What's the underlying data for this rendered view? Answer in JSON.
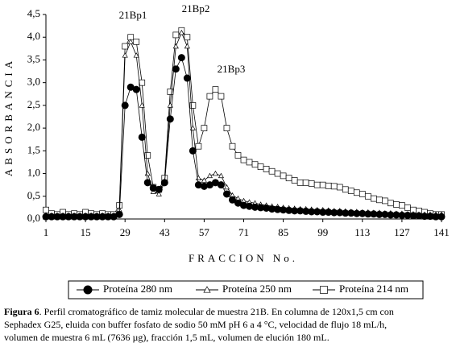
{
  "chart_data": {
    "type": "line",
    "annotations": [
      "21Bp1",
      "21Bp2",
      "21Bp3"
    ],
    "y_label": "ABSORBANCIA",
    "x_label": "FRACCION No.",
    "x": [
      1,
      3,
      5,
      7,
      9,
      11,
      13,
      15,
      17,
      19,
      21,
      23,
      25,
      27,
      29,
      31,
      33,
      35,
      37,
      39,
      41,
      43,
      45,
      47,
      49,
      51,
      53,
      55,
      57,
      59,
      61,
      63,
      65,
      67,
      69,
      71,
      73,
      75,
      77,
      79,
      81,
      83,
      85,
      87,
      89,
      91,
      93,
      95,
      97,
      99,
      101,
      103,
      105,
      107,
      109,
      111,
      113,
      115,
      117,
      119,
      121,
      123,
      125,
      127,
      129,
      131,
      133,
      135,
      137,
      139,
      141
    ],
    "xlim": [
      1,
      141
    ],
    "xticks": [
      1,
      15,
      29,
      43,
      57,
      71,
      85,
      99,
      113,
      127,
      141
    ],
    "ylim": [
      0,
      4.5
    ],
    "yticks": [
      {
        "value": 0,
        "label": "0,0"
      },
      {
        "value": 0.5,
        "label": "0,5"
      },
      {
        "value": 1,
        "label": "1,0"
      },
      {
        "value": 1.5,
        "label": "1,5"
      },
      {
        "value": 2,
        "label": "2,0"
      },
      {
        "value": 2.5,
        "label": "2,5"
      },
      {
        "value": 3,
        "label": "3,0"
      },
      {
        "value": 3.5,
        "label": "3,5"
      },
      {
        "value": 4,
        "label": "4,0"
      },
      {
        "value": 4.5,
        "label": "4,5"
      }
    ],
    "series": [
      {
        "name": "Proteína 280 nm",
        "color": "#000000",
        "marker": "circle",
        "values": [
          0.05,
          0.05,
          0.05,
          0.05,
          0.05,
          0.05,
          0.05,
          0.05,
          0.05,
          0.05,
          0.05,
          0.05,
          0.05,
          0.1,
          2.5,
          2.9,
          2.85,
          1.8,
          0.8,
          0.68,
          0.65,
          0.8,
          2.2,
          3.3,
          3.55,
          3.1,
          1.5,
          0.75,
          0.72,
          0.75,
          0.8,
          0.75,
          0.55,
          0.42,
          0.35,
          0.3,
          0.28,
          0.26,
          0.25,
          0.24,
          0.22,
          0.21,
          0.2,
          0.19,
          0.18,
          0.18,
          0.17,
          0.16,
          0.16,
          0.15,
          0.15,
          0.14,
          0.14,
          0.13,
          0.13,
          0.12,
          0.12,
          0.11,
          0.11,
          0.1,
          0.1,
          0.09,
          0.09,
          0.08,
          0.08,
          0.07,
          0.07,
          0.06,
          0.06,
          0.05,
          0.05
        ]
      },
      {
        "name": "Proteína 250 nm",
        "color": "#000000",
        "marker": "triangle",
        "values": [
          0.08,
          0.08,
          0.08,
          0.08,
          0.08,
          0.08,
          0.08,
          0.08,
          0.08,
          0.08,
          0.08,
          0.08,
          0.08,
          0.2,
          3.6,
          3.9,
          3.6,
          2.5,
          1.0,
          0.6,
          0.55,
          0.8,
          2.5,
          3.8,
          4.1,
          3.8,
          2.0,
          0.9,
          0.85,
          0.95,
          1.0,
          0.95,
          0.7,
          0.52,
          0.45,
          0.4,
          0.37,
          0.35,
          0.32,
          0.3,
          0.28,
          0.27,
          0.25,
          0.24,
          0.23,
          0.22,
          0.22,
          0.21,
          0.2,
          0.2,
          0.19,
          0.18,
          0.18,
          0.17,
          0.16,
          0.16,
          0.15,
          0.15,
          0.14,
          0.14,
          0.13,
          0.13,
          0.12,
          0.12,
          0.11,
          0.11,
          0.1,
          0.1,
          0.1,
          0.1,
          0.1
        ]
      },
      {
        "name": "Proteína 214 nm",
        "color": "#000000",
        "marker": "square",
        "values": [
          0.2,
          0.12,
          0.1,
          0.15,
          0.1,
          0.12,
          0.1,
          0.15,
          0.12,
          0.1,
          0.12,
          0.1,
          0.1,
          0.3,
          3.8,
          4.0,
          3.9,
          3.0,
          1.4,
          0.7,
          0.65,
          0.9,
          2.8,
          4.05,
          4.15,
          4.0,
          2.5,
          1.6,
          2.0,
          2.7,
          2.85,
          2.7,
          2.0,
          1.6,
          1.4,
          1.3,
          1.25,
          1.2,
          1.15,
          1.1,
          1.05,
          1.0,
          0.95,
          0.9,
          0.85,
          0.8,
          0.8,
          0.78,
          0.75,
          0.75,
          0.73,
          0.72,
          0.7,
          0.65,
          0.62,
          0.58,
          0.55,
          0.5,
          0.45,
          0.42,
          0.4,
          0.35,
          0.32,
          0.3,
          0.25,
          0.2,
          0.18,
          0.15,
          0.12,
          0.1,
          0.1
        ]
      }
    ],
    "legend": "bottom",
    "caption": {
      "label": "Figura 6",
      "lines": [
        ". Perfil cromatográfico de tamiz molecular de muestra 21B. En columna de 120x1,5 cm con",
        "Sephadex  G25, eluida con buffer fosfato de sodio 50 mM pH 6 a 4 °C, velocidad de flujo 18 mL/h,",
        "volumen de muestra 6  mL (7636 µg), fracción 1,5 mL, volumen de elución 180 mL."
      ]
    }
  }
}
